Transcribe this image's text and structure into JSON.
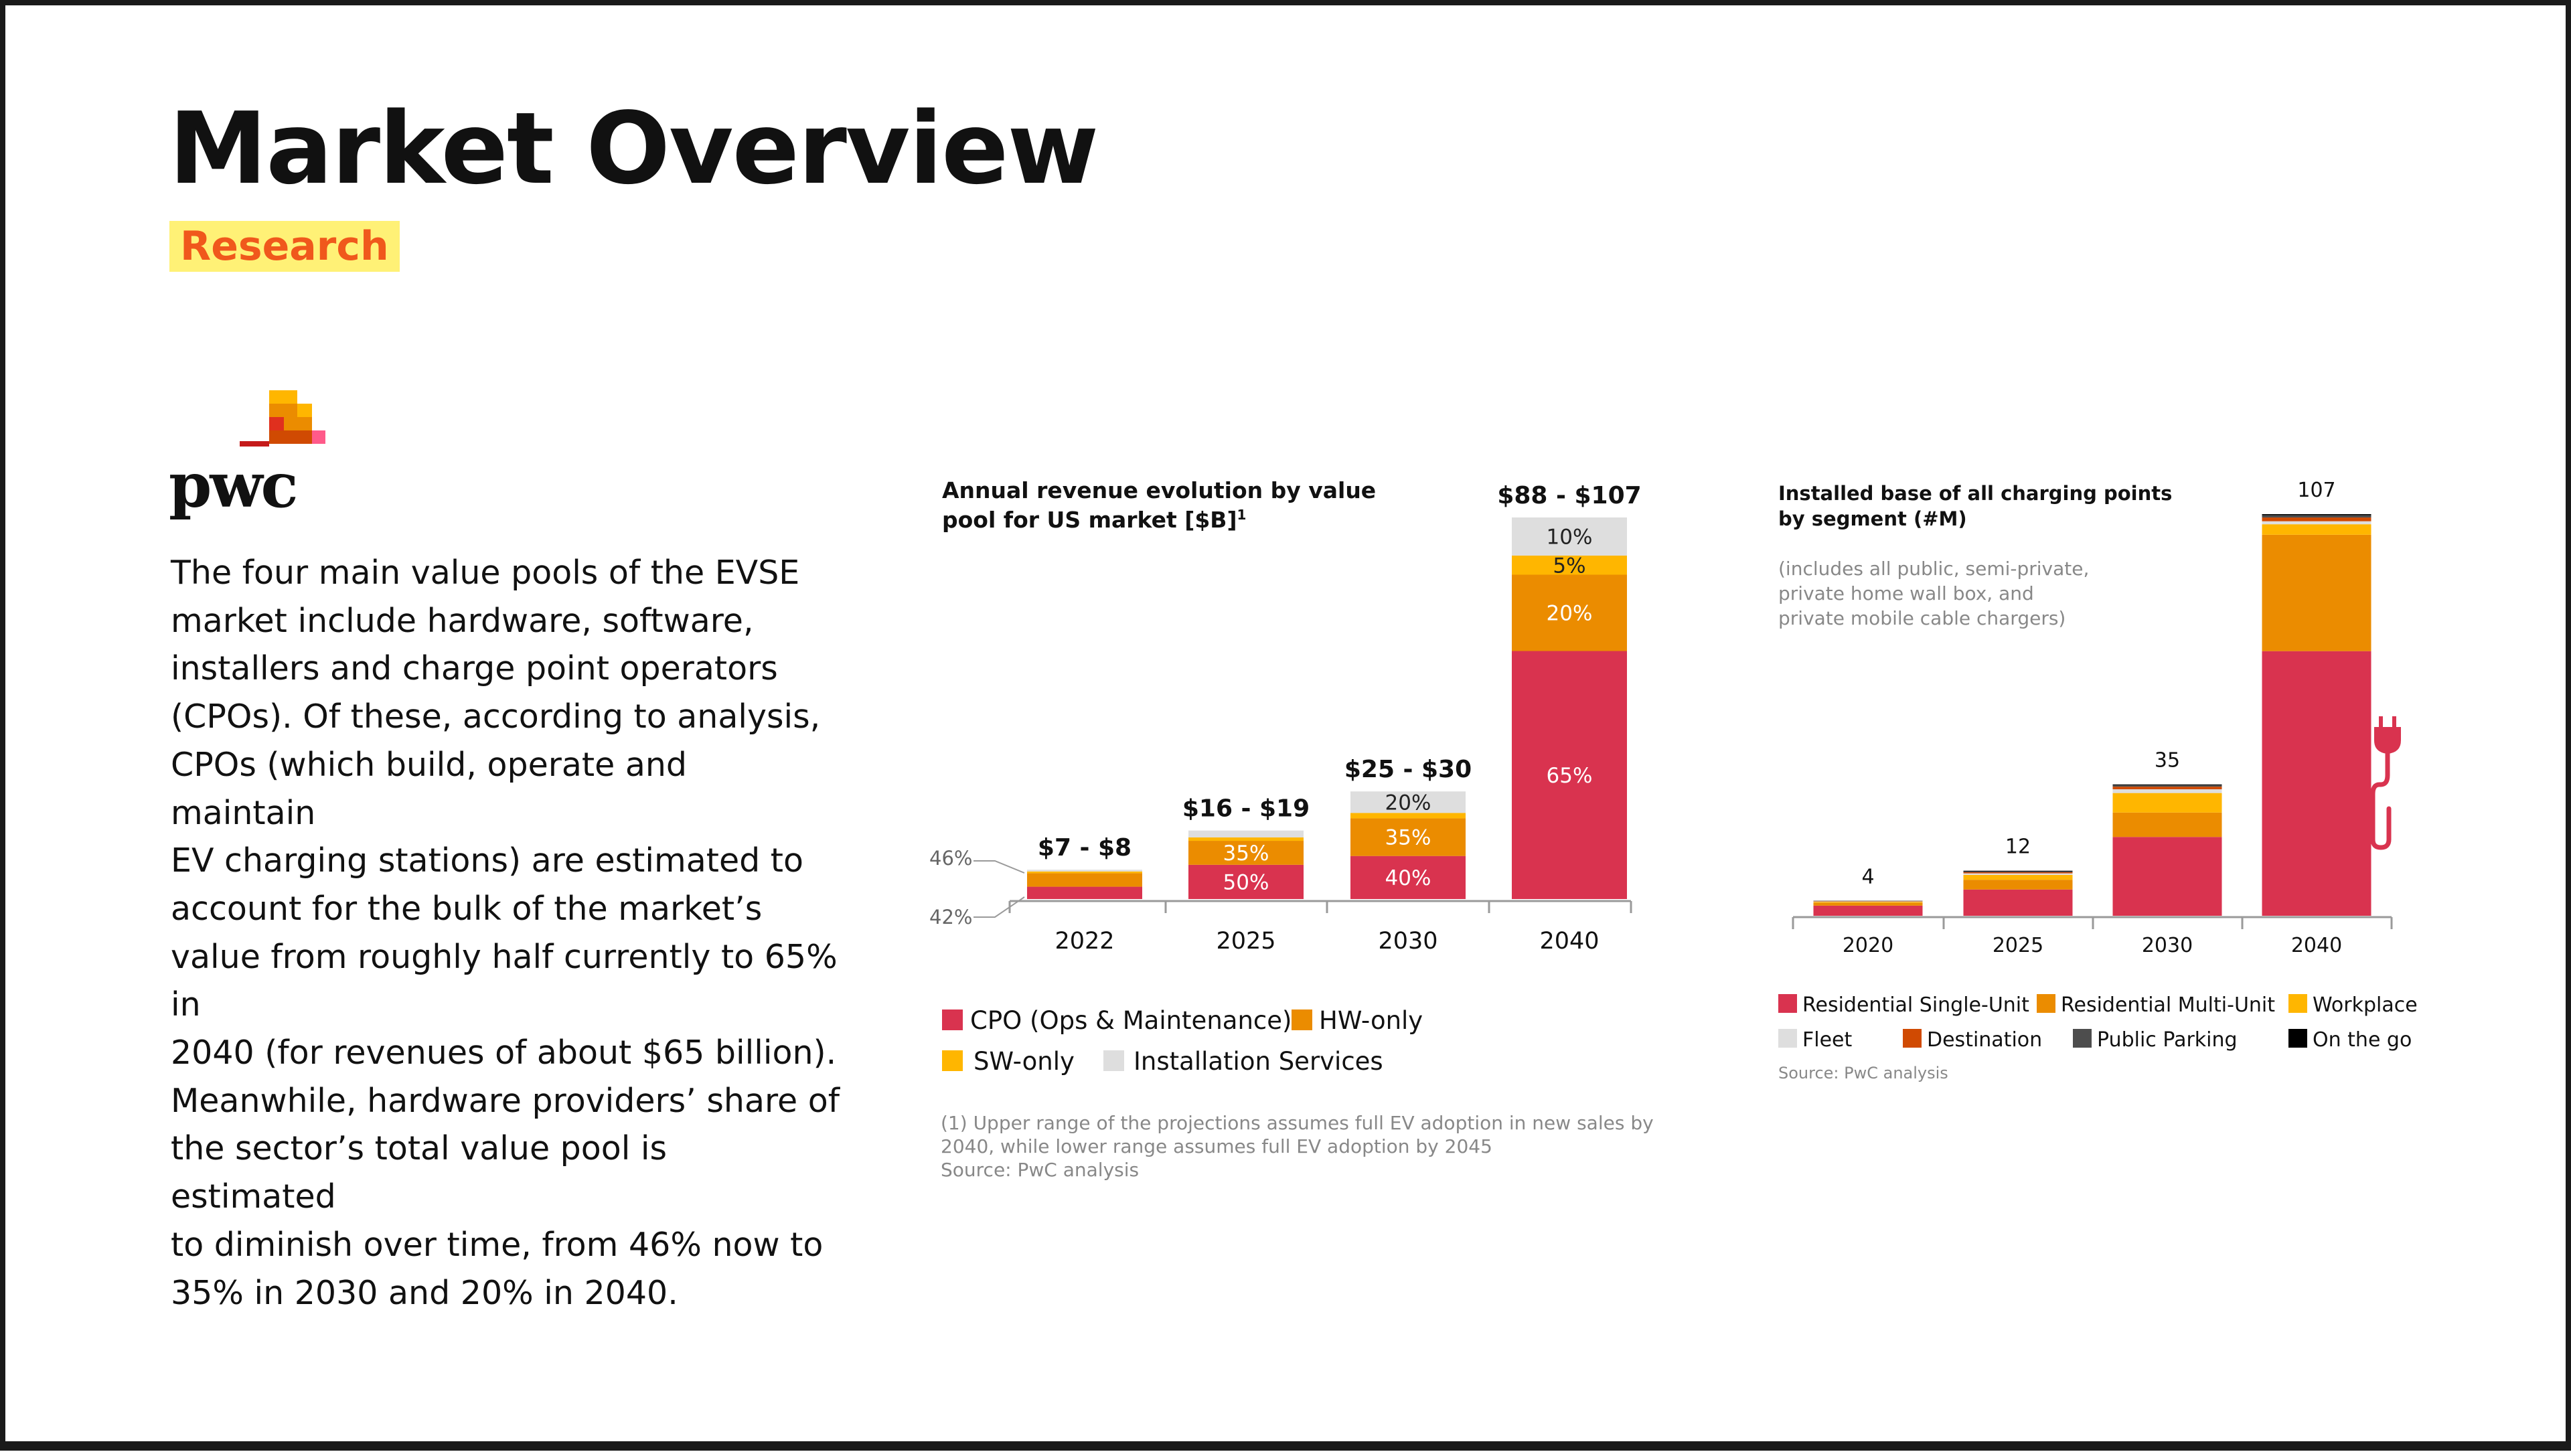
{
  "slide": {
    "title": "Market Overview",
    "badge": "Research",
    "logo_text": "pwc",
    "body_lines": [
      "The four main value pools of the EVSE",
      "market include hardware, software,",
      "installers and charge point operators",
      "(CPOs). Of these, according to analysis,",
      "CPOs (which build, operate and maintain",
      "EV charging stations) are estimated to",
      "account for the bulk of the market’s",
      "value from roughly half currently to 65% in",
      "2040 (for revenues of about $65 billion).",
      "Meanwhile, hardware providers’ share of",
      "the sector’s total value pool is estimated",
      "to diminish over time, from 46% now to",
      "35% in 2030 and 20% in 2040."
    ]
  },
  "colors": {
    "cpo": "#d9334f",
    "hw": "#eb8c00",
    "sw": "#ffb600",
    "install": "#dedede",
    "residential_single": "#d9334f",
    "residential_multi": "#eb8c00",
    "workplace": "#ffb600",
    "fleet": "#dedede",
    "destination": "#d04a02",
    "public_parking": "#4d4d4d",
    "on_the_go": "#000000",
    "badge_bg": "#fff176",
    "badge_text": "#f0581c"
  },
  "chart_data": [
    {
      "type": "bar",
      "stacked": true,
      "title_lines": [
        "Annual revenue evolution by value",
        "pool for US market [$B]"
      ],
      "title_footnote_mark": "1",
      "categories": [
        "2022",
        "2025",
        "2030",
        "2040"
      ],
      "totals": [
        "$7 - $8",
        "$16 - $19",
        "$25 - $30",
        "$88 - $107"
      ],
      "total_values": [
        7.5,
        17.5,
        27.5,
        97.5
      ],
      "ylim": [
        0,
        97.5
      ],
      "grid": false,
      "legend_position": "bottom",
      "series": [
        {
          "name": "CPO (Ops & Maintenance)",
          "color_key": "cpo",
          "shares": [
            0.42,
            0.5,
            0.4,
            0.65
          ],
          "labels": [
            "",
            "50%",
            "40%",
            "65%"
          ]
        },
        {
          "name": "HW-only",
          "color_key": "hw",
          "shares": [
            0.46,
            0.35,
            0.35,
            0.2
          ],
          "labels": [
            "",
            "35%",
            "35%",
            "20%"
          ]
        },
        {
          "name": "SW-only",
          "color_key": "sw",
          "shares": [
            0.06,
            0.05,
            0.05,
            0.05
          ],
          "labels": [
            "",
            "",
            "",
            "5%"
          ]
        },
        {
          "name": "Installation Services",
          "color_key": "install",
          "shares": [
            0.06,
            0.1,
            0.2,
            0.1
          ],
          "labels": [
            "",
            "",
            "20%",
            "10%"
          ]
        }
      ],
      "side_annotations": [
        "46%",
        "42%"
      ],
      "footnote_lines": [
        "(1) Upper range of the projections assumes full EV adoption in new sales by",
        "2040, while lower range assumes full EV adoption by 2045",
        "Source: PwC analysis"
      ]
    },
    {
      "type": "bar",
      "stacked": true,
      "title_lines": [
        "Installed base of all charging points",
        "by segment (#M)"
      ],
      "subtitle_lines": [
        "(includes all public, semi-private,",
        "private home wall box, and",
        "private mobile cable chargers)"
      ],
      "categories": [
        "2020",
        "2025",
        "2030",
        "2040"
      ],
      "totals": [
        "4",
        "12",
        "35",
        "107"
      ],
      "total_values": [
        4,
        12,
        35,
        107
      ],
      "ylim": [
        0,
        107
      ],
      "grid": false,
      "legend_position": "bottom",
      "series": [
        {
          "name": "Residential Single-Unit",
          "color_key": "residential_single",
          "values": [
            2.7,
            7,
            21,
            70.5
          ]
        },
        {
          "name": "Residential Multi-Unit",
          "color_key": "residential_multi",
          "values": [
            0.8,
            2.6,
            6.5,
            31
          ]
        },
        {
          "name": "Workplace",
          "color_key": "workplace",
          "values": [
            0.2,
            1.3,
            5.2,
            2.8
          ]
        },
        {
          "name": "Fleet",
          "color_key": "fleet",
          "values": [
            0.1,
            0.4,
            1,
            0.8
          ]
        },
        {
          "name": "Destination",
          "color_key": "destination",
          "values": [
            0.1,
            0.3,
            0.7,
            1
          ]
        },
        {
          "name": "Public Parking",
          "color_key": "public_parking",
          "values": [
            0.05,
            0.2,
            0.4,
            0.6
          ]
        },
        {
          "name": "On the go",
          "color_key": "on_the_go",
          "values": [
            0.05,
            0.2,
            0.2,
            0.3
          ]
        }
      ],
      "source": "Source: PwC analysis"
    }
  ]
}
